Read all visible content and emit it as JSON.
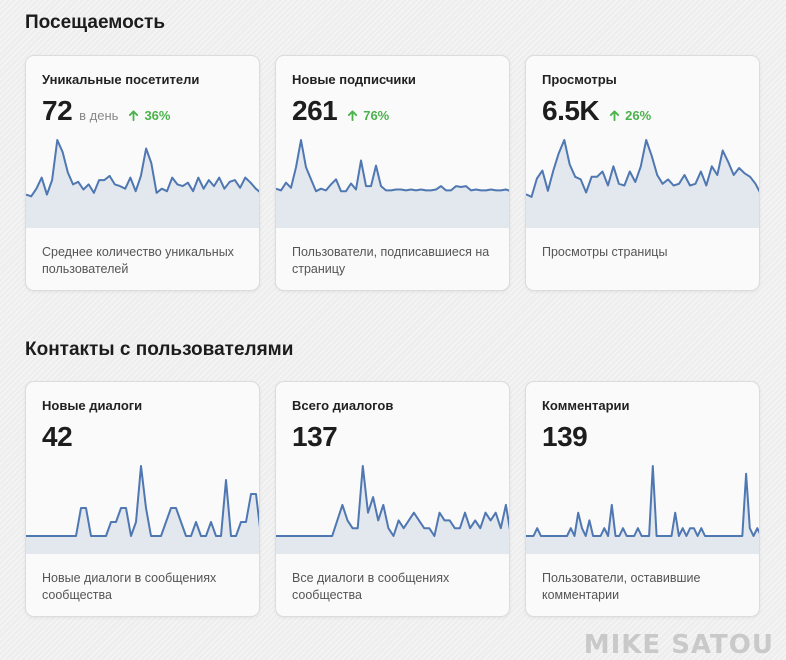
{
  "sections": [
    {
      "title": "Посещаемость",
      "cards": [
        {
          "title": "Уникальные посетители",
          "value": "72",
          "unit": "в день",
          "trend": "36%",
          "description": "Среднее количество уникальных пользователей",
          "series": [
            18,
            16,
            25,
            38,
            18,
            35,
            82,
            68,
            44,
            30,
            33,
            24,
            30,
            20,
            35,
            35,
            40,
            30,
            28,
            25,
            38,
            22,
            40,
            72,
            55,
            20,
            25,
            22,
            38,
            30,
            28,
            32,
            22,
            38,
            25,
            35,
            28,
            38,
            25,
            33,
            35,
            26,
            38,
            32,
            25,
            20
          ]
        },
        {
          "title": "Новые подписчики",
          "value": "261",
          "unit": "",
          "trend": "76%",
          "description": "Пользователи, подписавшиеся на страницу",
          "series": [
            25,
            23,
            32,
            26,
            50,
            82,
            50,
            36,
            22,
            25,
            23,
            30,
            36,
            22,
            22,
            31,
            24,
            58,
            28,
            28,
            52,
            28,
            23,
            23,
            24,
            24,
            23,
            24,
            23,
            24,
            23,
            23,
            24,
            28,
            23,
            23,
            28,
            27,
            28,
            23,
            24,
            23,
            23,
            24,
            23,
            23,
            24,
            22
          ]
        },
        {
          "title": "Просмотры",
          "value": "6.5K",
          "unit": "",
          "trend": "26%",
          "description": "Просмотры страницы",
          "series": [
            18,
            15,
            36,
            45,
            22,
            45,
            65,
            80,
            52,
            38,
            35,
            20,
            38,
            38,
            44,
            28,
            50,
            30,
            28,
            44,
            32,
            50,
            80,
            62,
            40,
            30,
            35,
            28,
            30,
            40,
            28,
            30,
            44,
            28,
            50,
            40,
            68,
            55,
            40,
            48,
            42,
            38,
            30,
            18
          ]
        }
      ]
    },
    {
      "title": "Контакты с пользователями",
      "cards": [
        {
          "title": "Новые диалоги",
          "value": "42",
          "unit": "",
          "trend": "",
          "description": "Новые диалоги в сообщениях сообщества",
          "series": [
            0,
            0,
            0,
            0,
            0,
            0,
            0,
            0,
            0,
            0,
            0,
            2,
            2,
            0,
            0,
            0,
            0,
            1,
            1,
            2,
            2,
            0,
            1,
            5,
            2,
            0,
            0,
            0,
            1,
            2,
            2,
            1,
            0,
            0,
            1,
            0,
            0,
            1,
            0,
            0,
            4,
            0,
            0,
            1,
            1,
            3,
            3,
            0
          ]
        },
        {
          "title": "Всего диалогов",
          "value": "137",
          "unit": "",
          "trend": "",
          "description": "Все диалоги в сообщениях сообщества",
          "series": [
            0,
            0,
            0,
            0,
            0,
            0,
            0,
            0,
            0,
            0,
            0,
            0,
            2,
            4,
            2,
            1,
            1,
            9,
            3,
            5,
            2,
            4,
            1,
            0,
            2,
            1,
            2,
            3,
            2,
            1,
            1,
            0,
            3,
            2,
            2,
            1,
            1,
            3,
            1,
            2,
            1,
            3,
            2,
            3,
            1,
            4,
            0
          ]
        },
        {
          "title": "Комментарии",
          "value": "139",
          "unit": "",
          "trend": "",
          "description": "Пользователи, оставившие комментарии",
          "series": [
            0,
            0,
            0,
            1,
            0,
            0,
            0,
            0,
            0,
            0,
            0,
            0,
            1,
            0,
            3,
            1,
            0,
            2,
            0,
            0,
            0,
            1,
            0,
            4,
            0,
            0,
            1,
            0,
            0,
            0,
            1,
            0,
            0,
            0,
            9,
            0,
            0,
            0,
            0,
            0,
            3,
            0,
            1,
            0,
            1,
            1,
            0,
            1,
            0,
            0,
            0,
            0,
            0,
            0,
            0,
            0,
            0,
            0,
            0,
            8,
            1,
            0,
            1,
            0
          ]
        }
      ]
    }
  ],
  "watermark": "MIKE SATOU",
  "colors": {
    "line": "#4f77b2",
    "fill": "#e3e8ee",
    "trend": "#4bb34b"
  }
}
